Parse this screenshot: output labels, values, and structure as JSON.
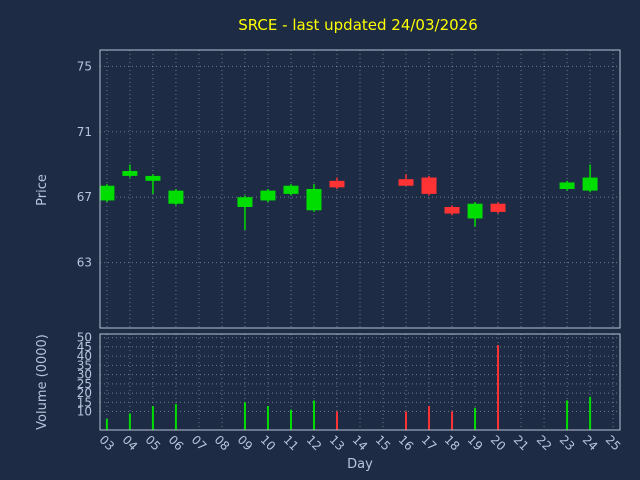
{
  "chart_data": {
    "type": "candlestick",
    "title": "SRCE - last updated 24/03/2026",
    "xlabel": "Day",
    "xticks": [
      "03",
      "04",
      "05",
      "06",
      "07",
      "08",
      "09",
      "10",
      "11",
      "12",
      "13",
      "14",
      "15",
      "16",
      "17",
      "18",
      "19",
      "20",
      "21",
      "22",
      "23",
      "24",
      "25"
    ],
    "xlim": [
      2.7,
      25.3
    ],
    "price_panel": {
      "ylabel": "Price",
      "yticks": [
        63,
        67,
        71,
        75
      ],
      "ylim": [
        59,
        76
      ]
    },
    "volume_panel": {
      "ylabel": "Volume (0000)",
      "yticks": [
        10,
        15,
        20,
        25,
        30,
        35,
        40,
        45,
        50
      ],
      "ylim": [
        0,
        52
      ]
    },
    "colors": {
      "background": "#1d2b45",
      "title": "#ffff00",
      "tick_label": "#b8c4da",
      "frame": "#b6c0d2",
      "grid": "#cfd8e8",
      "up": "#00dd00",
      "down": "#ff3333"
    },
    "candles": [
      {
        "day": 3,
        "open": 66.8,
        "high": 67.8,
        "low": 66.7,
        "close": 67.7,
        "volume": 6
      },
      {
        "day": 4,
        "open": 68.3,
        "high": 69.0,
        "low": 68.2,
        "close": 68.6,
        "volume": 9
      },
      {
        "day": 5,
        "open": 68.0,
        "high": 68.4,
        "low": 67.2,
        "close": 68.3,
        "volume": 13
      },
      {
        "day": 6,
        "open": 66.6,
        "high": 67.5,
        "low": 66.5,
        "close": 67.4,
        "volume": 14
      },
      {
        "day": 9,
        "open": 66.4,
        "high": 67.1,
        "low": 65.0,
        "close": 67.0,
        "volume": 15
      },
      {
        "day": 10,
        "open": 66.8,
        "high": 67.5,
        "low": 66.7,
        "close": 67.4,
        "volume": 13
      },
      {
        "day": 11,
        "open": 67.2,
        "high": 67.8,
        "low": 67.1,
        "close": 67.7,
        "volume": 11
      },
      {
        "day": 12,
        "open": 66.2,
        "high": 67.8,
        "low": 66.1,
        "close": 67.5,
        "volume": 16
      },
      {
        "day": 13,
        "open": 68.0,
        "high": 68.2,
        "low": 67.5,
        "close": 67.6,
        "volume": 10
      },
      {
        "day": 16,
        "open": 68.1,
        "high": 68.4,
        "low": 67.7,
        "close": 67.7,
        "volume": 10
      },
      {
        "day": 17,
        "open": 68.2,
        "high": 68.3,
        "low": 67.1,
        "close": 67.2,
        "volume": 13
      },
      {
        "day": 18,
        "open": 66.4,
        "high": 66.5,
        "low": 65.9,
        "close": 66.0,
        "volume": 10
      },
      {
        "day": 19,
        "open": 65.7,
        "high": 66.7,
        "low": 65.2,
        "close": 66.6,
        "volume": 12
      },
      {
        "day": 20,
        "open": 66.6,
        "high": 66.7,
        "low": 66.0,
        "close": 66.1,
        "volume": 46
      },
      {
        "day": 23,
        "open": 67.5,
        "high": 68.0,
        "low": 67.4,
        "close": 67.9,
        "volume": 16
      },
      {
        "day": 24,
        "open": 67.4,
        "high": 69.0,
        "low": 67.3,
        "close": 68.2,
        "volume": 18
      }
    ]
  }
}
